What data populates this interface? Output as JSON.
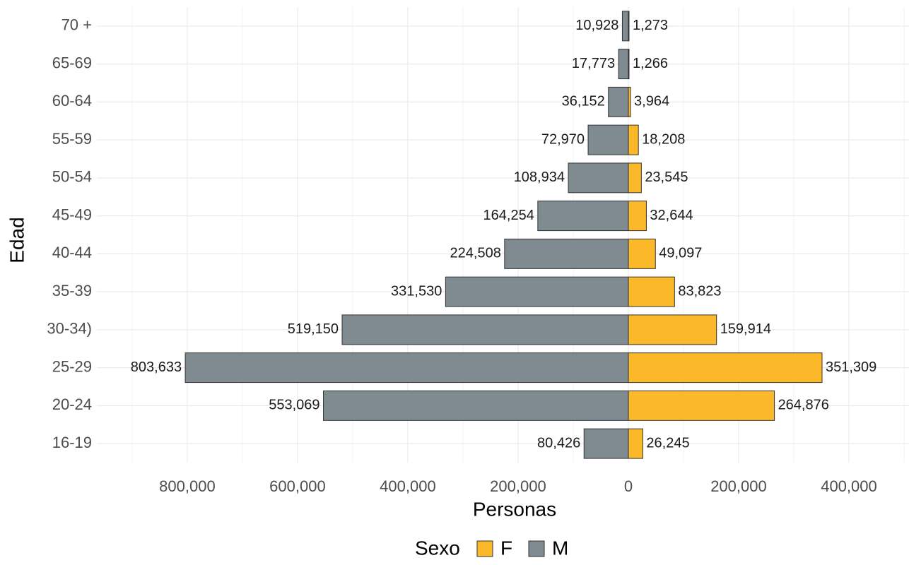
{
  "chart_data": {
    "type": "pyramid",
    "x_label": "Personas",
    "y_label": "Edad",
    "legend_title": "Sexo",
    "categories": [
      "16-19",
      "20-24",
      "25-29",
      "30-34)",
      "35-39",
      "40-44",
      "45-49",
      "50-54",
      "55-59",
      "60-64",
      "65-69",
      "70 +"
    ],
    "series": [
      {
        "name": "F",
        "color": "#fbb829",
        "values": [
          26245,
          264876,
          351309,
          159914,
          83823,
          49097,
          32644,
          23545,
          18208,
          3964,
          1266,
          1273
        ],
        "value_labels": [
          "26,245",
          "264,876",
          "351,309",
          "159,914",
          "83,823",
          "49,097",
          "32,644",
          "23,545",
          "18,208",
          "3,964",
          "1,266",
          "1,273"
        ]
      },
      {
        "name": "M",
        "color": "#7f8a91",
        "values": [
          -80426,
          -553069,
          -803633,
          -519150,
          -331530,
          -224508,
          -164254,
          -108934,
          -72970,
          -36152,
          -17773,
          -10928
        ],
        "value_labels": [
          "80,426",
          "553,069",
          "803,633",
          "519,150",
          "331,530",
          "224,508",
          "164,254",
          "108,934",
          "72,970",
          "36,152",
          "17,773",
          "10,928"
        ]
      }
    ],
    "xlim": [
      -964000,
      509000
    ],
    "xticks": [
      {
        "value": -800000,
        "label": "800,000"
      },
      {
        "value": -600000,
        "label": "600,000"
      },
      {
        "value": -400000,
        "label": "400,000"
      },
      {
        "value": -200000,
        "label": "200,000"
      },
      0,
      {
        "value": 200000,
        "label": "200,000"
      },
      {
        "value": 400000,
        "label": "400,000"
      }
    ],
    "grid": true,
    "legend_position": "bottom"
  }
}
